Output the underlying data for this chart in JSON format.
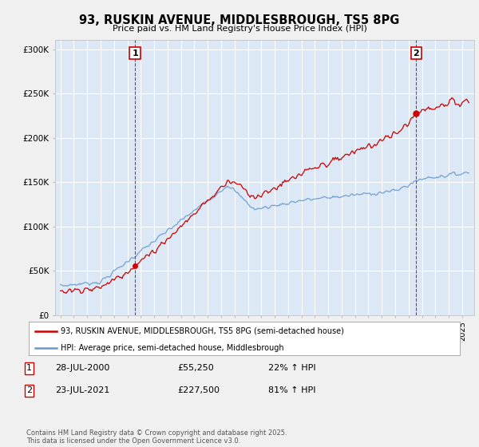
{
  "title": "93, RUSKIN AVENUE, MIDDLESBROUGH, TS5 8PG",
  "subtitle": "Price paid vs. HM Land Registry's House Price Index (HPI)",
  "ylim": [
    0,
    310000
  ],
  "yticks": [
    0,
    50000,
    100000,
    150000,
    200000,
    250000,
    300000
  ],
  "ytick_labels": [
    "£0",
    "£50K",
    "£100K",
    "£150K",
    "£200K",
    "£250K",
    "£300K"
  ],
  "background_color": "#f0f0f0",
  "plot_bg_color": "#dce8f5",
  "grid_color": "#ffffff",
  "sale1": {
    "date_x": 2000.57,
    "price": 55250,
    "label": "1"
  },
  "sale2": {
    "date_x": 2021.56,
    "price": 227500,
    "label": "2"
  },
  "legend_line1": "93, RUSKIN AVENUE, MIDDLESBROUGH, TS5 8PG (semi-detached house)",
  "legend_line2": "HPI: Average price, semi-detached house, Middlesbrough",
  "annotation1_date": "28-JUL-2000",
  "annotation1_price": "£55,250",
  "annotation1_hpi": "22% ↑ HPI",
  "annotation2_date": "23-JUL-2021",
  "annotation2_price": "£227,500",
  "annotation2_hpi": "81% ↑ HPI",
  "footer": "Contains HM Land Registry data © Crown copyright and database right 2025.\nThis data is licensed under the Open Government Licence v3.0.",
  "line_red": "#cc0000",
  "line_blue": "#6699cc",
  "vline_color": "#cc0000",
  "xlim_left": 1994.6,
  "xlim_right": 2025.9
}
